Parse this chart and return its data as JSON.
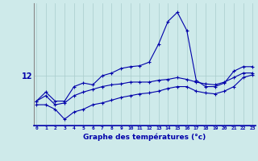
{
  "xlabel": "Graphe des températures (°c)",
  "background_color": "#ceeaea",
  "grid_color": "#aacccc",
  "line_color": "#0000aa",
  "x": [
    0,
    1,
    2,
    3,
    4,
    5,
    6,
    7,
    8,
    9,
    10,
    11,
    12,
    13,
    14,
    15,
    16,
    17,
    18,
    19,
    20,
    21,
    22,
    23
  ],
  "y_top": [
    9.2,
    10.2,
    9.2,
    9.2,
    10.8,
    11.2,
    11.0,
    12.0,
    12.3,
    12.8,
    13.0,
    13.1,
    13.5,
    15.5,
    18.0,
    19.0,
    17.0,
    11.5,
    10.8,
    10.8,
    11.2,
    12.5,
    13.0,
    13.0
  ],
  "y_mid": [
    9.2,
    9.8,
    8.8,
    9.0,
    9.8,
    10.2,
    10.5,
    10.8,
    11.0,
    11.1,
    11.3,
    11.3,
    11.3,
    11.5,
    11.6,
    11.8,
    11.6,
    11.3,
    11.1,
    11.0,
    11.3,
    11.8,
    12.3,
    12.3
  ],
  "y_bot": [
    8.8,
    8.8,
    8.3,
    7.2,
    8.0,
    8.3,
    8.8,
    9.0,
    9.3,
    9.6,
    9.8,
    10.0,
    10.1,
    10.3,
    10.6,
    10.8,
    10.8,
    10.3,
    10.1,
    10.0,
    10.3,
    10.8,
    11.8,
    12.1
  ],
  "ytick_pos": 12,
  "ytick_label": "12",
  "ylim": [
    6.5,
    20.0
  ],
  "xlim": [
    -0.3,
    23.3
  ]
}
